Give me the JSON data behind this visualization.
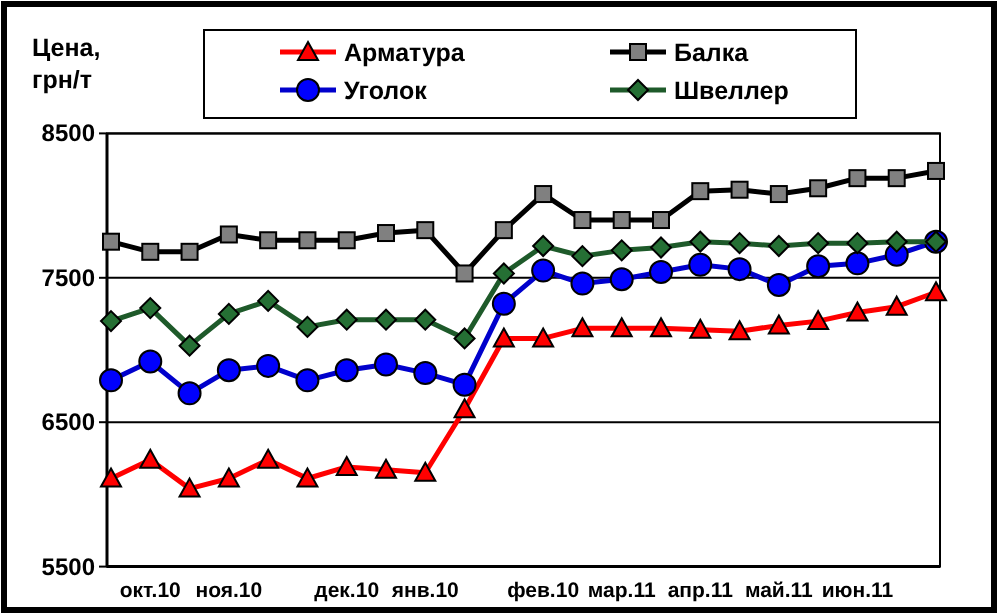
{
  "chart_data": {
    "type": "line",
    "ylabel": "Цена, грн/т",
    "categories": [
      null,
      "окт.10",
      null,
      "ноя.10",
      null,
      null,
      "дек.10",
      null,
      "янв.10",
      null,
      null,
      "фев.10",
      null,
      "мар.11",
      null,
      "апр.11",
      null,
      "май.11",
      null,
      "июн.11",
      null,
      null
    ],
    "ylim": [
      5500,
      8500
    ],
    "yticks": [
      5500,
      6500,
      7500,
      8500
    ],
    "grid": "y",
    "legend": "top",
    "series": [
      {
        "name": "Арматура",
        "color": "#ff0000",
        "marker": "triangle",
        "values": [
          6110,
          6240,
          6040,
          6110,
          6240,
          6110,
          6190,
          6170,
          6150,
          6590,
          7080,
          7080,
          7150,
          7150,
          7150,
          7140,
          7130,
          7170,
          7200,
          7260,
          7300,
          7400
        ]
      },
      {
        "name": "Балка",
        "color": "#000000",
        "marker": "square",
        "values": [
          7750,
          7680,
          7680,
          7800,
          7760,
          7760,
          7760,
          7810,
          7830,
          7530,
          7830,
          8080,
          7900,
          7900,
          7900,
          8100,
          8110,
          8080,
          8120,
          8190,
          8190,
          8240
        ]
      },
      {
        "name": "Уголок",
        "color": "#0000cc",
        "marker": "circle",
        "values": [
          6790,
          6920,
          6700,
          6860,
          6890,
          6790,
          6860,
          6900,
          6840,
          6760,
          7320,
          7550,
          7460,
          7490,
          7540,
          7590,
          7560,
          7450,
          7580,
          7600,
          7660,
          7750
        ]
      },
      {
        "name": "Швеллер",
        "color": "#1e5a2a",
        "marker": "diamond",
        "values": [
          7200,
          7290,
          7030,
          7250,
          7340,
          7160,
          7210,
          7210,
          7210,
          7080,
          7530,
          7720,
          7650,
          7690,
          7710,
          7750,
          7740,
          7720,
          7740,
          7740,
          7750,
          7750
        ]
      }
    ]
  }
}
